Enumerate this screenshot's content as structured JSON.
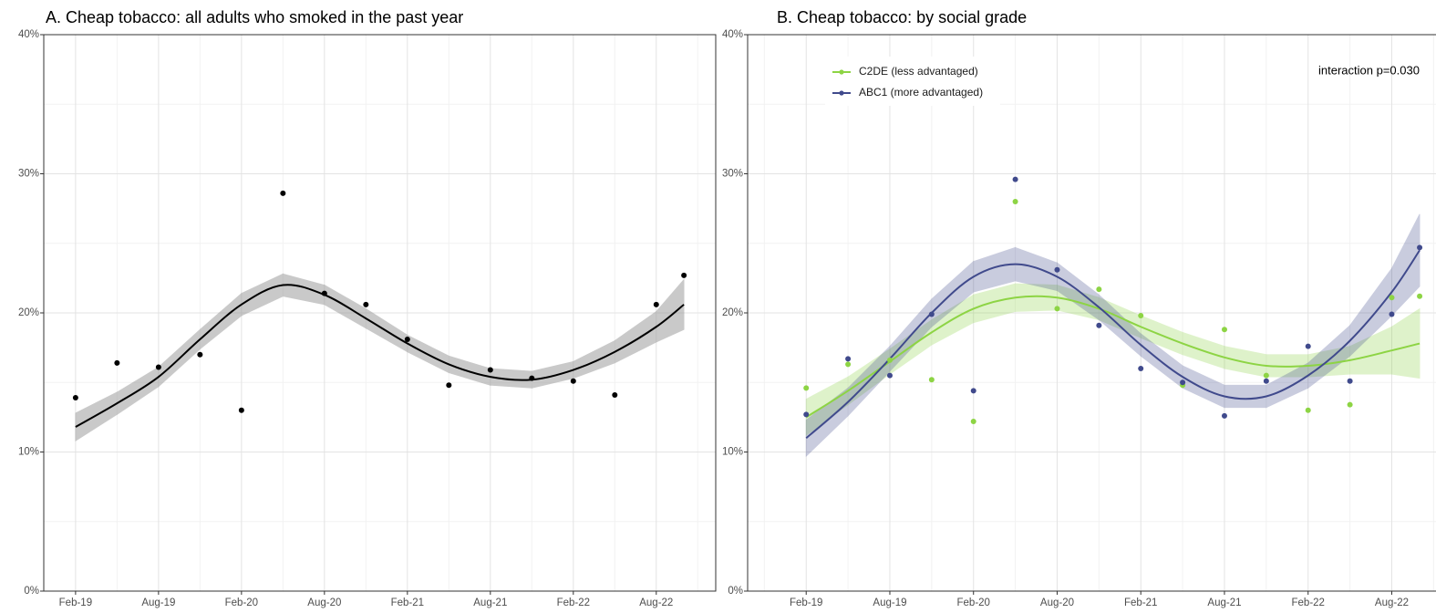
{
  "chart_data": [
    {
      "type": "line",
      "title": "A. Cheap tobacco: all adults who smoked in the past year",
      "x": [
        0,
        3,
        6,
        9,
        12,
        15,
        18,
        21,
        24,
        27,
        30,
        33,
        36,
        39,
        42,
        44
      ],
      "xlim": [
        -2.3,
        46.3
      ],
      "xticks": [
        {
          "value": 0,
          "label": "Feb-19"
        },
        {
          "value": 6,
          "label": "Aug-19"
        },
        {
          "value": 12,
          "label": "Feb-20"
        },
        {
          "value": 18,
          "label": "Aug-20"
        },
        {
          "value": 24,
          "label": "Feb-21"
        },
        {
          "value": 30,
          "label": "Aug-21"
        },
        {
          "value": 36,
          "label": "Feb-22"
        },
        {
          "value": 42,
          "label": "Aug-22"
        }
      ],
      "xminor": [
        3,
        9,
        15,
        21,
        27,
        33,
        39,
        45
      ],
      "ylim": [
        0,
        40
      ],
      "yticks": [
        {
          "value": 0,
          "label": "0%"
        },
        {
          "value": 10,
          "label": "10%"
        },
        {
          "value": 20,
          "label": "20%"
        },
        {
          "value": 30,
          "label": "30%"
        },
        {
          "value": 40,
          "label": "40%"
        }
      ],
      "yminor": [
        5,
        15,
        25,
        35
      ],
      "grid": true,
      "band_color": "#9e9e9e",
      "series": [
        {
          "color": "#000000",
          "values": [
            13.9,
            16.4,
            16.1,
            17.0,
            13.0,
            28.6,
            21.4,
            20.6,
            18.1,
            14.8,
            15.9,
            15.3,
            15.1,
            14.1,
            20.6,
            22.7
          ],
          "fit": {
            "values": [
              11.8,
              13.5,
              15.4,
              18.1,
              20.6,
              22.0,
              21.3,
              19.6,
              17.8,
              16.3,
              15.4,
              15.2,
              15.9,
              17.2,
              19.0,
              20.6
            ],
            "lower": [
              10.8,
              12.7,
              14.7,
              17.4,
              19.8,
              21.2,
              20.6,
              18.9,
              17.2,
              15.7,
              14.8,
              14.6,
              15.3,
              16.4,
              17.9,
              18.8
            ],
            "upper": [
              12.8,
              14.3,
              16.1,
              18.8,
              21.4,
              22.8,
              22.0,
              20.3,
              18.4,
              16.9,
              16.0,
              15.8,
              16.5,
              18.0,
              20.1,
              22.4
            ]
          }
        }
      ]
    },
    {
      "type": "line",
      "title": "B. Cheap tobacco: by social grade",
      "annotation": "interaction p=0.030",
      "x": [
        0,
        3,
        6,
        9,
        12,
        15,
        18,
        21,
        24,
        27,
        30,
        33,
        36,
        39,
        42,
        44
      ],
      "xlim": [
        -4.2,
        45.5
      ],
      "xticks": [
        {
          "value": 0,
          "label": "Feb-19"
        },
        {
          "value": 6,
          "label": "Aug-19"
        },
        {
          "value": 12,
          "label": "Feb-20"
        },
        {
          "value": 18,
          "label": "Aug-20"
        },
        {
          "value": 24,
          "label": "Feb-21"
        },
        {
          "value": 30,
          "label": "Aug-21"
        },
        {
          "value": 36,
          "label": "Feb-22"
        },
        {
          "value": 42,
          "label": "Aug-22"
        }
      ],
      "xminor": [
        -3,
        3,
        9,
        15,
        21,
        27,
        33,
        39,
        45
      ],
      "ylim": [
        0,
        40
      ],
      "yticks": [
        {
          "value": 0,
          "label": "0%"
        },
        {
          "value": 10,
          "label": "10%"
        },
        {
          "value": 20,
          "label": "20%"
        },
        {
          "value": 30,
          "label": "30%"
        },
        {
          "value": 40,
          "label": "40%"
        }
      ],
      "yminor": [
        5,
        15,
        25,
        35
      ],
      "grid": true,
      "legend": "top-left",
      "series": [
        {
          "name": "C2DE (less advantaged)",
          "color": "#8dd444",
          "values": [
            14.6,
            16.3,
            16.6,
            15.2,
            12.2,
            28.0,
            20.3,
            21.7,
            19.8,
            14.8,
            18.8,
            15.5,
            13.0,
            13.4,
            21.1,
            21.2
          ],
          "fit": {
            "values": [
              12.5,
              14.4,
              16.5,
              18.6,
              20.3,
              21.1,
              21.1,
              20.3,
              19.0,
              17.8,
              16.8,
              16.2,
              16.2,
              16.6,
              17.3,
              17.8
            ],
            "lower": [
              11.2,
              13.4,
              15.6,
              17.7,
              19.3,
              20.1,
              20.2,
              19.5,
              18.2,
              17.0,
              16.0,
              15.4,
              15.4,
              15.6,
              15.6,
              15.3
            ],
            "upper": [
              13.8,
              15.4,
              17.4,
              19.5,
              21.3,
              22.1,
              22.0,
              21.1,
              19.8,
              18.6,
              17.6,
              17.0,
              17.0,
              17.6,
              19.0,
              20.3
            ]
          }
        },
        {
          "name": "ABC1 (more advantaged)",
          "color": "#404a8c",
          "values": [
            12.7,
            16.7,
            15.5,
            19.9,
            14.4,
            29.6,
            23.1,
            19.1,
            16.0,
            15.0,
            12.6,
            15.1,
            17.6,
            15.1,
            19.9,
            24.7
          ],
          "fit": {
            "values": [
              11.0,
              13.6,
              16.7,
              20.0,
              22.6,
              23.5,
              22.6,
              20.4,
              17.7,
              15.4,
              14.0,
              14.0,
              15.5,
              18.0,
              21.5,
              24.5
            ],
            "lower": [
              9.7,
              12.6,
              15.8,
              19.0,
              21.5,
              22.3,
              21.6,
              19.5,
              16.9,
              14.6,
              13.2,
              13.2,
              14.6,
              16.9,
              19.8,
              21.9
            ],
            "upper": [
              12.3,
              14.6,
              17.6,
              21.0,
              23.7,
              24.7,
              23.6,
              21.3,
              18.5,
              16.2,
              14.8,
              14.8,
              16.4,
              19.1,
              23.2,
              27.1
            ]
          }
        }
      ]
    }
  ]
}
